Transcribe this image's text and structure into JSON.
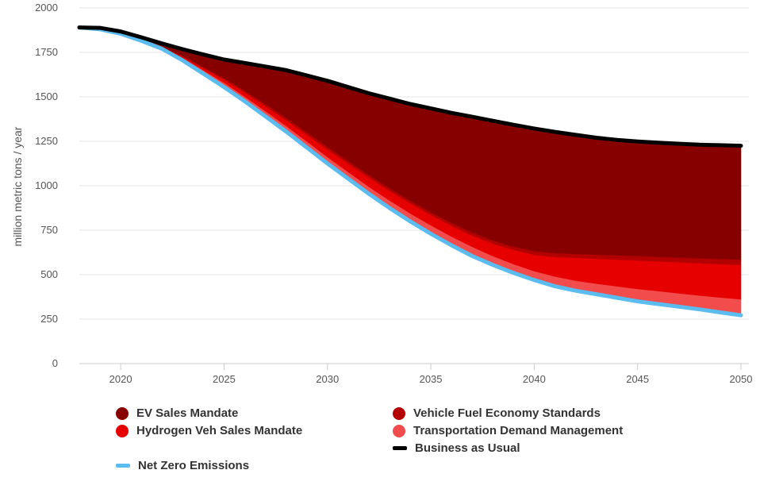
{
  "chart_data": {
    "type": "area",
    "title": "",
    "xlabel": "",
    "ylabel": "million metric tons / year",
    "xlim": [
      2018,
      2050
    ],
    "ylim": [
      0,
      2000
    ],
    "x_ticks": [
      "2020",
      "2025",
      "2030",
      "2035",
      "2040",
      "2045",
      "2050"
    ],
    "y_ticks": [
      "0",
      "250",
      "500",
      "750",
      "1000",
      "1250",
      "1500",
      "1750",
      "2000"
    ],
    "grid": "horizontal",
    "legend_position": "bottom",
    "x": [
      2018,
      2019,
      2020,
      2021,
      2022,
      2023,
      2024,
      2025,
      2026,
      2027,
      2028,
      2029,
      2030,
      2031,
      2032,
      2033,
      2034,
      2035,
      2036,
      2037,
      2038,
      2039,
      2040,
      2041,
      2042,
      2043,
      2044,
      2045,
      2046,
      2047,
      2048,
      2049,
      2050
    ],
    "series": [
      {
        "name": "Net Zero Emissions",
        "kind": "line",
        "color": "#5bbcf0",
        "values": [
          1890,
          1880,
          1855,
          1815,
          1770,
          1705,
          1630,
          1555,
          1475,
          1390,
          1305,
          1215,
          1125,
          1040,
          955,
          875,
          800,
          730,
          665,
          605,
          555,
          510,
          470,
          435,
          410,
          390,
          370,
          350,
          335,
          320,
          305,
          288,
          272
        ]
      },
      {
        "name": "Transportation Demand Management",
        "kind": "area",
        "color": "#f34c4c",
        "values": [
          1890,
          1880,
          1857,
          1818,
          1776,
          1720,
          1650,
          1580,
          1502,
          1420,
          1337,
          1250,
          1162,
          1078,
          995,
          918,
          845,
          778,
          715,
          657,
          605,
          560,
          520,
          490,
          467,
          450,
          435,
          420,
          408,
          395,
          383,
          372,
          362
        ]
      },
      {
        "name": "Hydrogen Veh Sales Mandate",
        "kind": "area",
        "color": "#e60000",
        "values": [
          1890,
          1880,
          1858,
          1820,
          1780,
          1726,
          1662,
          1598,
          1525,
          1448,
          1370,
          1288,
          1205,
          1125,
          1047,
          972,
          902,
          836,
          775,
          720,
          675,
          640,
          612,
          600,
          595,
          590,
          585,
          580,
          575,
          570,
          565,
          560,
          555
        ]
      },
      {
        "name": "Vehicle Fuel Economy Standards",
        "kind": "area",
        "color": "#b30000",
        "values": [
          1890,
          1880,
          1858,
          1821,
          1782,
          1730,
          1668,
          1606,
          1535,
          1460,
          1383,
          1302,
          1220,
          1140,
          1062,
          987,
          917,
          852,
          792,
          738,
          692,
          658,
          633,
          622,
          617,
          613,
          609,
          605,
          601,
          597,
          593,
          589,
          585
        ]
      },
      {
        "name": "EV Sales Mandate",
        "kind": "area",
        "color": "#870000",
        "values": [
          1890,
          1880,
          1860,
          1825,
          1792,
          1760,
          1730,
          1700,
          1680,
          1660,
          1640,
          1610,
          1580,
          1545,
          1510,
          1480,
          1450,
          1425,
          1400,
          1378,
          1355,
          1333,
          1312,
          1293,
          1276,
          1260,
          1248,
          1239,
          1232,
          1226,
          1221,
          1218,
          1215
        ]
      },
      {
        "name": "Business as Usual",
        "kind": "line",
        "color": "#000000",
        "values": [
          1890,
          1888,
          1868,
          1835,
          1800,
          1768,
          1738,
          1710,
          1690,
          1670,
          1650,
          1620,
          1590,
          1555,
          1520,
          1490,
          1460,
          1435,
          1410,
          1388,
          1365,
          1343,
          1322,
          1303,
          1286,
          1270,
          1258,
          1249,
          1242,
          1236,
          1231,
          1228,
          1225
        ]
      }
    ]
  },
  "legend": {
    "ev": {
      "label": "EV Sales Mandate",
      "color": "#870000"
    },
    "vfes": {
      "label": "Vehicle Fuel Economy Standards",
      "color": "#b30000"
    },
    "hydrogen": {
      "label": "Hydrogen Veh Sales Mandate",
      "color": "#e60000"
    },
    "tdm": {
      "label": "Transportation Demand Management",
      "color": "#f34c4c"
    },
    "bau": {
      "label": "Business as Usual",
      "color": "#000000"
    },
    "nze": {
      "label": "Net Zero Emissions",
      "color": "#5bbcf0"
    }
  }
}
